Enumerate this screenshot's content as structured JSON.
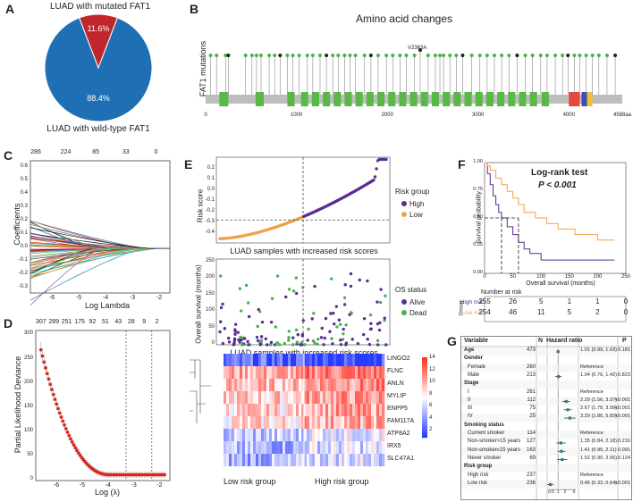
{
  "panel_labels": {
    "a": "A",
    "b": "B",
    "c": "C",
    "d": "D",
    "e": "E",
    "f": "F",
    "g": "G"
  },
  "colors": {
    "mutated": "#c0272d",
    "wildtype": "#1f6fb5",
    "orange": "#f0a04b",
    "purple": "#5b2d90",
    "green": "#4caf50",
    "gray_bar": "#bdbdbd",
    "domain": "#59b947"
  },
  "panelA": {
    "chart_data": {
      "type": "pie",
      "title_top": "LUAD with mutated FAT1",
      "title_bottom": "LUAD with wild-type FAT1",
      "slices": [
        {
          "name": "mutated",
          "value": 11.6,
          "label": "11.6%"
        },
        {
          "name": "wild-type",
          "value": 88.4,
          "label": "88.4%"
        }
      ]
    }
  },
  "panelB": {
    "title": "Amino acid changes",
    "ylabel": "FAT1 mutations",
    "annotation": "V2363A",
    "ticks": [
      "0",
      "1000",
      "2000",
      "3000",
      "4000",
      "4588aa"
    ],
    "chart_data": {
      "type": "lollipop",
      "xlim": [
        0,
        4588
      ],
      "length": 4588,
      "mutations": [
        55,
        120,
        220,
        250,
        440,
        510,
        560,
        610,
        700,
        760,
        820,
        900,
        960,
        1030,
        1120,
        1180,
        1260,
        1330,
        1400,
        1460,
        1530,
        1590,
        1650,
        1750,
        1820,
        1900,
        1990,
        2060,
        2140,
        2210,
        2300,
        2363,
        2450,
        2530,
        2580,
        2620,
        2690,
        2760,
        2830,
        2930,
        3020,
        3100,
        3180,
        3260,
        3340,
        3430,
        3520,
        3600,
        3690,
        3760,
        3850,
        3930,
        3990,
        4060,
        4120,
        4190,
        4260,
        4330,
        4420,
        4510
      ]
    }
  },
  "panelC": {
    "xlabel": "Log Lambda",
    "ylabel": "Coefficients",
    "top_ticks": [
      "286",
      "224",
      "85",
      "33",
      "0"
    ],
    "x_ticks": [
      "-6",
      "-5",
      "-4",
      "-3",
      "-2"
    ],
    "y_ticks": [
      "0.6",
      "0.5",
      "0.4",
      "0.3",
      "0.2",
      "0.1",
      "0.0",
      "-0.1",
      "-0.2",
      "-0.3"
    ],
    "chart_data": {
      "type": "line",
      "xlim": [
        -6.8,
        -1.6
      ],
      "ylim": [
        -0.33,
        0.65
      ],
      "n_paths": 60
    }
  },
  "panelD": {
    "xlabel": "Log (λ)",
    "ylabel": "Partial Likelihood Deviance",
    "top_ticks": [
      "307",
      "289",
      "251",
      "175",
      "92",
      "51",
      "43",
      "28",
      "9",
      "2"
    ],
    "x_ticks": [
      "-6",
      "-5",
      "-4",
      "-3",
      "-2"
    ],
    "y_ticks": [
      "300",
      "250",
      "200",
      "150",
      "100",
      "50",
      "0"
    ],
    "chart_data": {
      "type": "scatter",
      "xlim": [
        -6.8,
        -1.6
      ],
      "ylim": [
        0,
        310
      ],
      "vlines": [
        -3.3,
        -2.3
      ],
      "min_deviance": 12
    }
  },
  "panelE": {
    "risk": {
      "ylabel": "Risk score",
      "xlabel": "LUAD samples with increased risk scores",
      "legend_title": "Risk group",
      "legend": [
        {
          "label": "High",
          "color": "#5b2d90"
        },
        {
          "label": "Low",
          "color": "#f0a04b"
        }
      ],
      "y_ticks": [
        "0.2",
        "0.1",
        "0.0",
        "-0.1",
        "-0.2",
        "-0.3",
        "-0.4"
      ],
      "chart_data": {
        "type": "scatter",
        "ylim": [
          -0.48,
          0.32
        ],
        "cutoff": -0.265,
        "n": 473
      }
    },
    "survival": {
      "ylabel": "Overall survival (months)",
      "xlabel": "LUAD samples with increased risk scores",
      "legend_title": "OS status",
      "legend": [
        {
          "label": "Alive",
          "color": "#5b2d90"
        },
        {
          "label": "Dead",
          "color": "#4caf50"
        }
      ],
      "y_ticks": [
        "250",
        "200",
        "150",
        "100",
        "50",
        "0"
      ],
      "chart_data": {
        "type": "scatter",
        "ylim": [
          0,
          260
        ]
      }
    },
    "heatmap": {
      "genes": [
        "LINGO2",
        "FLNC",
        "ANLN",
        "MYLIP",
        "ENPP5",
        "FAM117A",
        "ATP8A2",
        "IRX5",
        "SLC47A1"
      ],
      "scale": [
        "14",
        "12",
        "10",
        "8",
        "6",
        "4",
        "2"
      ],
      "xlabel_low": "Low risk group",
      "xlabel_high": "High risk group",
      "chart_data": {
        "type": "heatmap"
      }
    }
  },
  "panelF": {
    "title": "Log-rank test",
    "pvalue": "P < 0.001",
    "ylabel": "Survival probability",
    "xlabel": "Overall survival (months)",
    "x_ticks": [
      "0",
      "50",
      "100",
      "150",
      "200",
      "250"
    ],
    "y_ticks": [
      "1.00",
      "0.75",
      "0.50",
      "0.25",
      "0.00"
    ],
    "risk_table_title": "Number at risk",
    "group_label": "Group",
    "rows": [
      {
        "name": "High risk",
        "counts": [
          "255",
          "26",
          "5",
          "1",
          "1",
          "0"
        ],
        "color": "#5b2d90"
      },
      {
        "name": "Low risk",
        "counts": [
          "254",
          "46",
          "11",
          "5",
          "2",
          "0"
        ],
        "color": "#f0a04b"
      }
    ],
    "chart_data": {
      "type": "line",
      "xlim": [
        0,
        250
      ],
      "ylim": [
        0,
        1
      ],
      "series": [
        {
          "name": "High risk",
          "x": [
            0,
            5,
            10,
            15,
            20,
            25,
            30,
            40,
            50,
            60,
            70,
            80,
            100,
            150,
            230
          ],
          "y": [
            1,
            0.9,
            0.8,
            0.7,
            0.62,
            0.55,
            0.5,
            0.42,
            0.35,
            0.28,
            0.22,
            0.18,
            0.12,
            0.12,
            0.12
          ]
        },
        {
          "name": "Low risk",
          "x": [
            0,
            5,
            10,
            20,
            30,
            40,
            50,
            60,
            70,
            90,
            110,
            130,
            160,
            200,
            230
          ],
          "y": [
            1,
            0.97,
            0.93,
            0.86,
            0.8,
            0.74,
            0.68,
            0.62,
            0.55,
            0.5,
            0.45,
            0.4,
            0.35,
            0.3,
            0.3
          ]
        }
      ]
    }
  },
  "panelG": {
    "headers": {
      "variable": "Variable",
      "n": "N",
      "hr": "Hazard ratio",
      "p": "P"
    },
    "axis": [
      "0.5",
      "1",
      "2",
      "5"
    ],
    "rows": [
      {
        "label": "Age",
        "n": "473",
        "hrtext": "1.01 (0.99, 1.03)",
        "p": "0.181",
        "bold": true,
        "est": 1.01,
        "lo": 0.99,
        "hi": 1.03
      },
      {
        "label": "Gender",
        "n": "",
        "hrtext": "",
        "p": "",
        "bold": true
      },
      {
        "label": "Female",
        "n": "260",
        "hrtext": "Reference",
        "p": "",
        "ind": true
      },
      {
        "label": "Male",
        "n": "213",
        "hrtext": "1.04 (0.76, 1.42)",
        "p": "0.823",
        "ind": true,
        "est": 1.04,
        "lo": 0.76,
        "hi": 1.42
      },
      {
        "label": "Stage",
        "n": "",
        "hrtext": "",
        "p": "",
        "bold": true
      },
      {
        "label": "I",
        "n": "261",
        "hrtext": "Reference",
        "p": "",
        "ind": true
      },
      {
        "label": "II",
        "n": "112",
        "hrtext": "2.29 (1.56, 3.37)",
        "p": "<0.001",
        "ind": true,
        "est": 2.29,
        "lo": 1.56,
        "hi": 3.37
      },
      {
        "label": "III",
        "n": "75",
        "hrtext": "2.67 (1.78, 3.99)",
        "p": "<0.001",
        "ind": true,
        "est": 2.67,
        "lo": 1.78,
        "hi": 3.99
      },
      {
        "label": "IV",
        "n": "25",
        "hrtext": "3.29 (1.86, 5.82)",
        "p": "<0.001",
        "ind": true,
        "est": 3.29,
        "lo": 1.86,
        "hi": 5.82
      },
      {
        "label": "Smoking status",
        "n": "",
        "hrtext": "",
        "p": "",
        "bold": true
      },
      {
        "label": "Current smoker",
        "n": "114",
        "hrtext": "Reference",
        "p": "",
        "ind": true
      },
      {
        "label": "Non-smoker>15 years",
        "n": "127",
        "hrtext": "1.35 (0.84, 2.18)",
        "p": "0.216",
        "ind": true,
        "est": 1.35,
        "lo": 0.84,
        "hi": 2.18
      },
      {
        "label": "Non-smoker≤15 years",
        "n": "163",
        "hrtext": "1.41 (0.95, 2.11)",
        "p": "0.091",
        "ind": true,
        "est": 1.41,
        "lo": 0.95,
        "hi": 2.11
      },
      {
        "label": "Never smoker",
        "n": "69",
        "hrtext": "1.52 (0.90, 2.56)",
        "p": "0.124",
        "ind": true,
        "est": 1.52,
        "lo": 0.9,
        "hi": 2.56
      },
      {
        "label": "Risk group",
        "n": "",
        "hrtext": "",
        "p": "",
        "bold": true
      },
      {
        "label": "High risk",
        "n": "237",
        "hrtext": "Reference",
        "p": "",
        "ind": true
      },
      {
        "label": "Low risk",
        "n": "236",
        "hrtext": "0.46 (0.33, 0.64)",
        "p": "<0.001",
        "ind": true,
        "est": 0.46,
        "lo": 0.33,
        "hi": 0.64
      }
    ]
  }
}
